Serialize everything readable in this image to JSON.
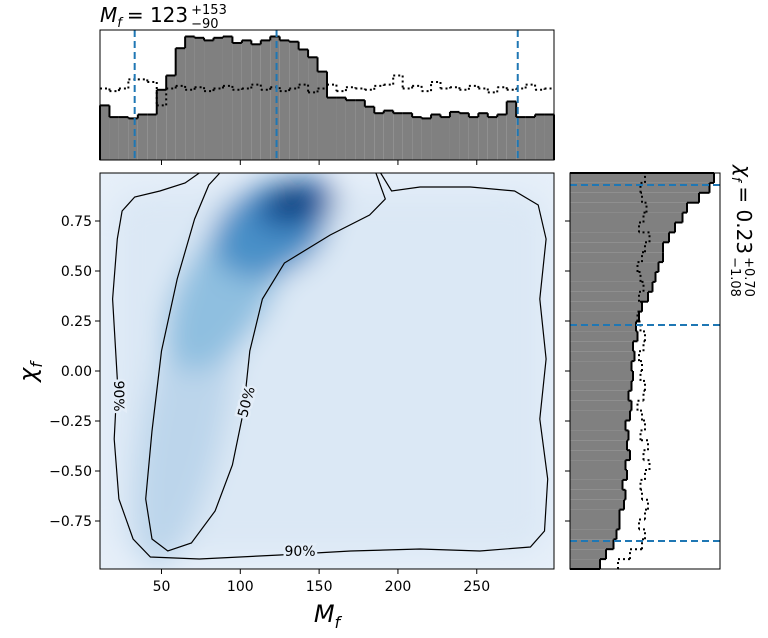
{
  "chart_data": [
    {
      "type": "histogram",
      "orientation": "vertical",
      "title": {
        "symbol": "M",
        "symbol_subscript": "f",
        "value": "= 123",
        "upper": "+153",
        "lower": "−90"
      },
      "bins": [
        11,
        17,
        23,
        29,
        35,
        41,
        47,
        53,
        59,
        65,
        71,
        77,
        83,
        89,
        95,
        101,
        107,
        113,
        119,
        125,
        131,
        137,
        143,
        149,
        155,
        161,
        167,
        173,
        179,
        185,
        191,
        197,
        203,
        209,
        215,
        221,
        227,
        233,
        239,
        245,
        251,
        257,
        263,
        269,
        275,
        281,
        287,
        293,
        299
      ],
      "series": [
        {
          "color": "#808080",
          "style": "filled",
          "values": [
            0.42,
            0.33,
            0.33,
            0.32,
            0.35,
            0.35,
            0.54,
            0.65,
            0.86,
            0.95,
            0.94,
            0.92,
            0.94,
            0.95,
            0.9,
            0.92,
            0.89,
            0.92,
            0.95,
            0.92,
            0.91,
            0.85,
            0.79,
            0.68,
            0.48,
            0.48,
            0.46,
            0.46,
            0.41,
            0.36,
            0.38,
            0.36,
            0.36,
            0.33,
            0.32,
            0.35,
            0.33,
            0.37,
            0.36,
            0.33,
            0.36,
            0.33,
            0.35,
            0.45,
            0.33,
            0.33,
            0.35,
            0.35
          ]
        },
        {
          "color": "#000000",
          "style": "dotted",
          "values": [
            0.55,
            0.53,
            0.55,
            0.62,
            0.62,
            0.6,
            0.42,
            0.55,
            0.57,
            0.54,
            0.56,
            0.53,
            0.55,
            0.57,
            0.54,
            0.55,
            0.58,
            0.54,
            0.56,
            0.53,
            0.55,
            0.58,
            0.52,
            0.55,
            0.58,
            0.53,
            0.56,
            0.55,
            0.54,
            0.57,
            0.58,
            0.65,
            0.55,
            0.57,
            0.53,
            0.6,
            0.55,
            0.56,
            0.54,
            0.57,
            0.55,
            0.52,
            0.56,
            0.54,
            0.55,
            0.58,
            0.54,
            0.55
          ]
        }
      ],
      "xlim": [
        11,
        299
      ],
      "ylim": [
        0,
        1
      ],
      "vlines": [
        33,
        123,
        276
      ],
      "line_color": "#1f77b4"
    },
    {
      "type": "density2d",
      "xlabel": {
        "symbol": "M",
        "subscript": "f"
      },
      "ylabel": {
        "symbol": "χ",
        "subscript": "f"
      },
      "xlim": [
        11,
        299
      ],
      "ylim": [
        -0.99,
        0.99
      ],
      "xticks": [
        50,
        100,
        150,
        200,
        250
      ],
      "yticks": [
        0.75,
        {
          "value": 0.5,
          "label": "0.50"
        },
        0.25,
        {
          "value": 0,
          "label": "0.00"
        },
        {
          "value": -0.25,
          "label": "−0.25"
        },
        {
          "value": -0.5,
          "label": "−0.50"
        },
        {
          "value": -0.75,
          "label": "−0.75"
        }
      ],
      "contour_color": "#000000",
      "contours": [
        {
          "label": "90%",
          "x": [
            74,
            65,
            49,
            33,
            25,
            22,
            19,
            22,
            20,
            23,
            32,
            43,
            74,
            125,
            170,
            214,
            252,
            284,
            293,
            295,
            290,
            294,
            290,
            294,
            289,
            274,
            246,
            214,
            196,
            189
          ],
          "y": [
            0.99,
            0.94,
            0.9,
            0.87,
            0.8,
            0.66,
            0.36,
            -0.04,
            -0.34,
            -0.64,
            -0.84,
            -0.93,
            -0.94,
            -0.92,
            -0.9,
            -0.89,
            -0.9,
            -0.88,
            -0.8,
            -0.54,
            -0.24,
            0.06,
            0.36,
            0.66,
            0.83,
            0.9,
            0.92,
            0.92,
            0.9,
            0.99
          ]
        },
        {
          "label": "50%",
          "x": [
            87,
            80,
            71,
            60,
            50,
            44,
            40,
            44,
            54,
            69,
            84,
            95,
            102,
            106,
            114,
            128,
            157,
            182,
            192,
            186
          ],
          "y": [
            0.99,
            0.93,
            0.76,
            0.46,
            0.1,
            -0.3,
            -0.64,
            -0.84,
            -0.9,
            -0.86,
            -0.7,
            -0.47,
            -0.2,
            0.1,
            0.36,
            0.54,
            0.68,
            0.78,
            0.86,
            0.99
          ]
        }
      ]
    },
    {
      "type": "histogram",
      "orientation": "horizontal",
      "title": {
        "symbol": "χ",
        "symbol_subscript": "f",
        "value": "= 0.23",
        "upper": "+0.70",
        "lower": "−1.08"
      },
      "bins": [
        -0.99,
        -0.9405,
        -0.891,
        -0.8415,
        -0.792,
        -0.7425,
        -0.693,
        -0.6435,
        -0.594,
        -0.5445,
        -0.495,
        -0.4455,
        -0.396,
        -0.3465,
        -0.297,
        -0.2475,
        -0.198,
        -0.1485,
        -0.099,
        -0.0495,
        0,
        0.0495,
        0.099,
        0.1485,
        0.198,
        0.2475,
        0.297,
        0.3465,
        0.396,
        0.4455,
        0.495,
        0.5445,
        0.594,
        0.6435,
        0.693,
        0.7425,
        0.792,
        0.8415,
        0.891,
        0.9405,
        0.99
      ],
      "series": [
        {
          "color": "#808080",
          "style": "filled",
          "values": [
            0.2,
            0.24,
            0.29,
            0.31,
            0.33,
            0.33,
            0.36,
            0.37,
            0.35,
            0.38,
            0.37,
            0.4,
            0.38,
            0.39,
            0.37,
            0.4,
            0.41,
            0.39,
            0.41,
            0.42,
            0.41,
            0.43,
            0.42,
            0.45,
            0.44,
            0.46,
            0.48,
            0.52,
            0.55,
            0.57,
            0.59,
            0.62,
            0.62,
            0.66,
            0.7,
            0.75,
            0.78,
            0.86,
            0.93,
            0.96
          ]
        },
        {
          "color": "#000000",
          "style": "dotted",
          "values": [
            0.32,
            0.4,
            0.48,
            0.5,
            0.46,
            0.5,
            0.52,
            0.48,
            0.47,
            0.5,
            0.53,
            0.49,
            0.52,
            0.47,
            0.5,
            0.48,
            0.45,
            0.49,
            0.5,
            0.47,
            0.48,
            0.46,
            0.49,
            0.5,
            0.47,
            0.45,
            0.48,
            0.46,
            0.49,
            0.47,
            0.45,
            0.48,
            0.5,
            0.53,
            0.46,
            0.49,
            0.51,
            0.48,
            0.47,
            0.5
          ]
        }
      ],
      "xlim": [
        0,
        1
      ],
      "ylim": [
        -0.99,
        0.99
      ],
      "hlines": [
        0.93,
        0.23,
        -0.85
      ],
      "line_color": "#1f77b4"
    }
  ]
}
